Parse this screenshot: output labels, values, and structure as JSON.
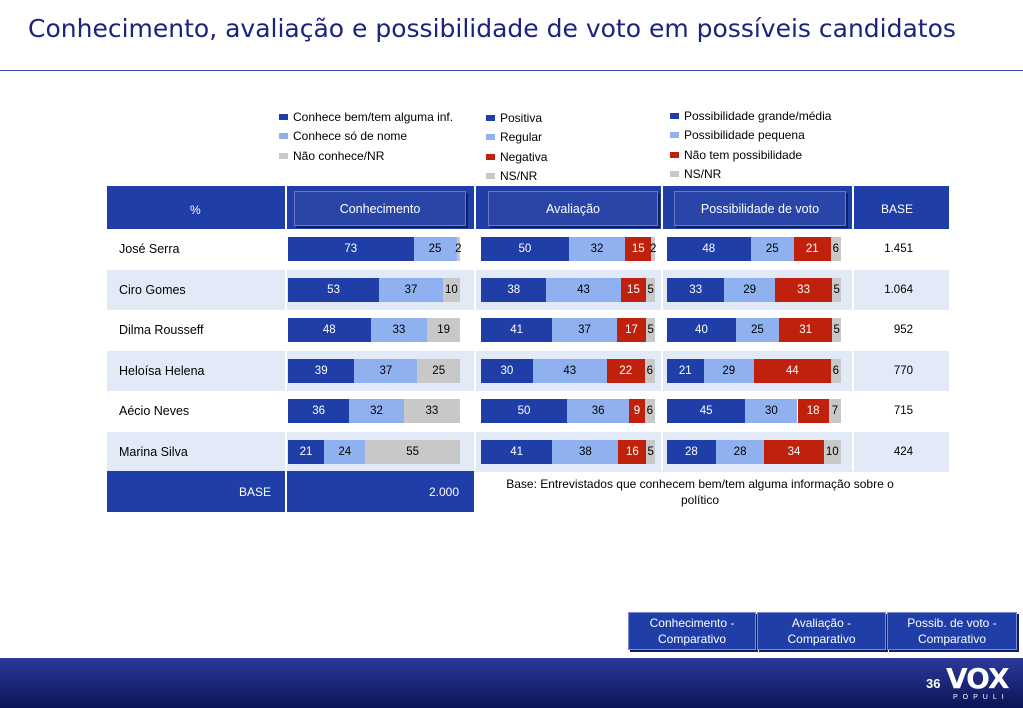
{
  "page": {
    "title": "Conhecimento, avaliação e possibilidade de voto em possíveis candidatos",
    "page_number": "36",
    "logo_text": "VOX",
    "logo_sub": "POPULI"
  },
  "colors": {
    "header_blue": "#1f3ea8",
    "dark_blue": "#1f3ea8",
    "light_blue": "#8fb1ef",
    "gray": "#c8c8c8",
    "red": "#c0210d",
    "row_alt": "#e3eaf7"
  },
  "legends": {
    "conhecimento": [
      "Conhece bem/tem alguma inf.",
      "Conhece só de nome",
      "Não conhece/NR"
    ],
    "avaliacao": [
      "Positiva",
      "Regular",
      "Negativa",
      "NS/NR"
    ],
    "voto": [
      "Possibilidade grande/média",
      "Possibilidade pequena",
      "Não tem possibilidade",
      "NS/NR"
    ]
  },
  "table": {
    "pct_label": "%",
    "col_conhecimento": "Conhecimento",
    "col_avaliacao": "Avaliação",
    "col_voto": "Possibilidade de voto",
    "col_base": "BASE",
    "footer_base_label": "BASE",
    "footer_base_value": "2.000",
    "footnote": "Base: Entrevistados que conhecem bem/tem alguma informação sobre o político"
  },
  "chart_data": {
    "type": "bar",
    "orientation": "horizontal-stacked-100",
    "categories": [
      "José Serra",
      "Ciro Gomes",
      "Dilma Rousseff",
      "Heloísa Helena",
      "Aécio Neves",
      "Marina Silva"
    ],
    "bases": [
      "1.451",
      "1.064",
      "952",
      "770",
      "715",
      "424"
    ],
    "groups": [
      {
        "name": "Conhecimento",
        "series": [
          {
            "name": "Conhece bem/tem alguma inf.",
            "values": [
              73,
              53,
              48,
              39,
              36,
              21
            ]
          },
          {
            "name": "Conhece só de nome",
            "values": [
              25,
              37,
              33,
              37,
              32,
              24
            ]
          },
          {
            "name": "Não conhece/NR",
            "values": [
              2,
              10,
              19,
              25,
              33,
              55
            ]
          }
        ]
      },
      {
        "name": "Avaliação",
        "series": [
          {
            "name": "Positiva",
            "values": [
              50,
              38,
              41,
              30,
              50,
              41
            ]
          },
          {
            "name": "Regular",
            "values": [
              32,
              43,
              37,
              43,
              36,
              38
            ]
          },
          {
            "name": "Negativa",
            "values": [
              15,
              15,
              17,
              22,
              9,
              16
            ]
          },
          {
            "name": "NS/NR",
            "values": [
              2,
              5,
              5,
              6,
              6,
              5
            ]
          }
        ]
      },
      {
        "name": "Possibilidade de voto",
        "series": [
          {
            "name": "Possibilidade grande/média",
            "values": [
              48,
              33,
              40,
              21,
              45,
              28
            ]
          },
          {
            "name": "Possibilidade pequena",
            "values": [
              25,
              29,
              25,
              29,
              30,
              28
            ]
          },
          {
            "name": "Não tem possibilidade",
            "values": [
              21,
              33,
              31,
              44,
              18,
              34
            ]
          },
          {
            "name": "NS/NR",
            "values": [
              6,
              5,
              5,
              6,
              7,
              10
            ]
          }
        ]
      }
    ]
  },
  "nav": {
    "btn1": "Conhecimento - Comparativo",
    "btn2": "Avaliação - Comparativo",
    "btn3": "Possib. de voto - Comparativo"
  }
}
